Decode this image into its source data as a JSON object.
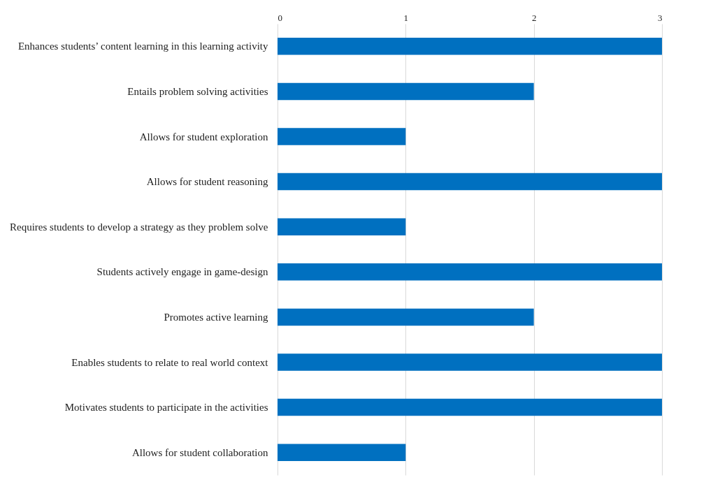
{
  "chart_data": {
    "type": "bar",
    "orientation": "horizontal",
    "categories": [
      "Enhances students’ content learning in this learning activity",
      "Entails problem solving activities",
      "Allows for student exploration",
      "Allows for student reasoning",
      "Requires students to develop a strategy as they problem solve",
      "Students actively engage in game-design",
      "Promotes active learning",
      "Enables students to relate to real world context",
      "Motivates students to participate in the activities",
      "Allows for student collaboration"
    ],
    "values": [
      3,
      2,
      1,
      3,
      1,
      3,
      2,
      3,
      3,
      1
    ],
    "color": "#0070c0",
    "xlim": [
      0,
      3
    ],
    "xticks": [
      0,
      1,
      2,
      3
    ],
    "grid": "x"
  }
}
